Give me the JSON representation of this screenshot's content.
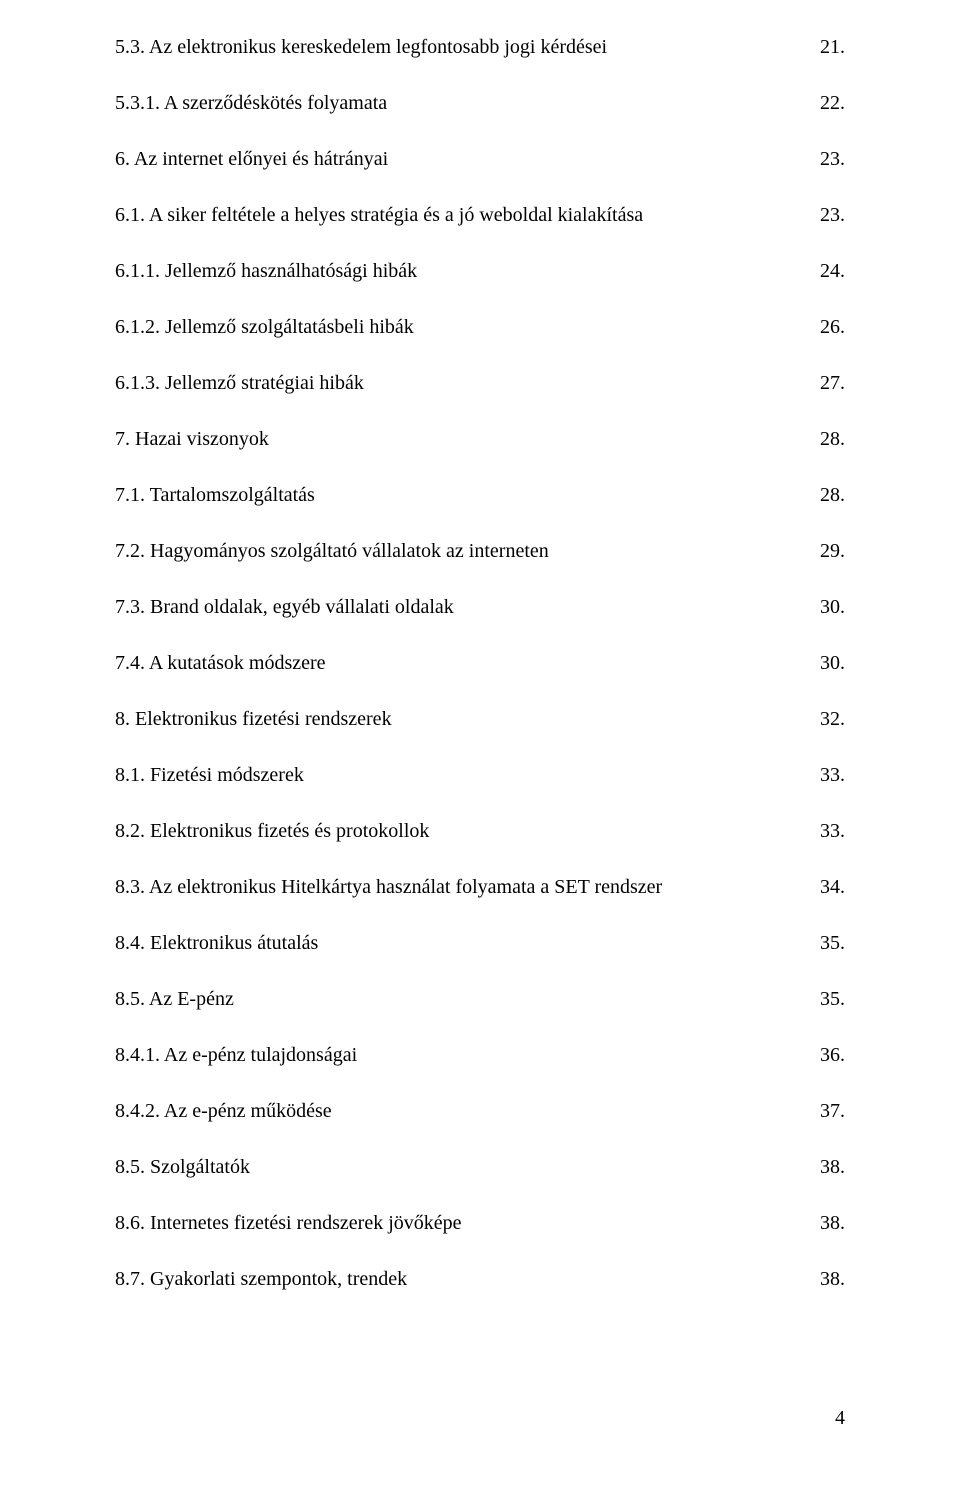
{
  "font_family": "Times New Roman",
  "text_color": "#000000",
  "background_color": "#ffffff",
  "font_size_pt": 15,
  "toc": [
    {
      "num": "5.3.",
      "title": "Az elektronikus kereskedelem legfontosabb jogi kérdései",
      "page": "21."
    },
    {
      "num": "5.3.1.",
      "title": "A szerződéskötés folyamata",
      "page": "22."
    },
    {
      "num": "6.",
      "title": "Az internet előnyei és hátrányai",
      "page": "23."
    },
    {
      "num": "6.1.",
      "title": "A siker feltétele a helyes stratégia és a jó weboldal kialakítása",
      "page": "23."
    },
    {
      "num": "6.1.1.",
      "title": "Jellemző használhatósági hibák",
      "page": "24."
    },
    {
      "num": "6.1.2.",
      "title": "Jellemző szolgáltatásbeli hibák",
      "page": "26."
    },
    {
      "num": "6.1.3.",
      "title": "Jellemző stratégiai hibák",
      "page": "27."
    },
    {
      "num": "7.",
      "title": "Hazai viszonyok",
      "page": "28."
    },
    {
      "num": "7.1.",
      "title": "Tartalomszolgáltatás",
      "page": "28."
    },
    {
      "num": "7.2.",
      "title": "Hagyományos szolgáltató vállalatok az interneten",
      "page": "29."
    },
    {
      "num": "7.3.",
      "title": "Brand oldalak, egyéb vállalati oldalak",
      "page": "30."
    },
    {
      "num": "7.4.",
      "title": "A kutatások módszere",
      "page": "30."
    },
    {
      "num": "8.",
      "title": "Elektronikus fizetési rendszerek",
      "page": "32."
    },
    {
      "num": "8.1.",
      "title": "Fizetési módszerek",
      "page": "33."
    },
    {
      "num": "8.2.",
      "title": "Elektronikus fizetés és protokollok",
      "page": "33."
    },
    {
      "num": "8.3.",
      "title": "Az elektronikus Hitelkártya használat folyamata a SET rendszer",
      "page": "34."
    },
    {
      "num": "8.4.",
      "title": "Elektronikus átutalás",
      "page": "35."
    },
    {
      "num": "8.5.",
      "title": "Az E-pénz",
      "page": "35."
    },
    {
      "num": "8.4.1.",
      "title": "Az e-pénz tulajdonságai",
      "page": "36."
    },
    {
      "num": "8.4.2.",
      "title": "Az e-pénz működése",
      "page": "37."
    },
    {
      "num": "8.5.",
      "title": "Szolgáltatók",
      "page": "38."
    },
    {
      "num": "8.6.",
      "title": "Internetes fizetési rendszerek jövőképe",
      "page": "38."
    },
    {
      "num": "8.7.",
      "title": "Gyakorlati szempontok, trendek",
      "page": "38."
    }
  ],
  "footer_page_number": "4"
}
